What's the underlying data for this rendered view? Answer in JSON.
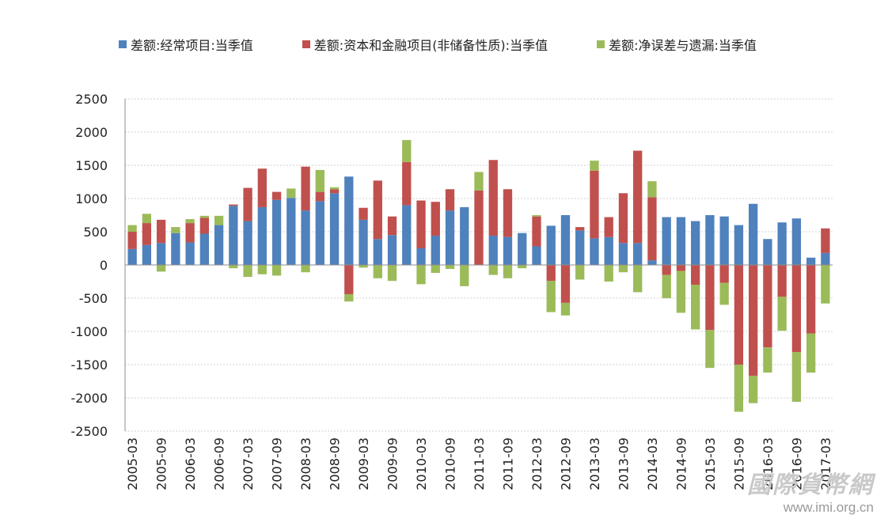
{
  "chart_data": {
    "type": "bar",
    "stacked": true,
    "title": "",
    "xlabel": "",
    "ylabel": "",
    "ylim": [
      -2500,
      2500
    ],
    "yticks": [
      2500,
      2000,
      1500,
      1000,
      500,
      0,
      -500,
      -1000,
      -1500,
      -2000,
      -2500
    ],
    "grid": true,
    "legend_position": "top",
    "categories": [
      "2005-03",
      "2005-06",
      "2005-09",
      "2005-12",
      "2006-03",
      "2006-06",
      "2006-09",
      "2006-12",
      "2007-03",
      "2007-06",
      "2007-09",
      "2007-12",
      "2008-03",
      "2008-06",
      "2008-09",
      "2008-12",
      "2009-03",
      "2009-06",
      "2009-09",
      "2009-12",
      "2010-03",
      "2010-06",
      "2010-09",
      "2010-12",
      "2011-03",
      "2011-06",
      "2011-09",
      "2011-12",
      "2012-03",
      "2012-06",
      "2012-09",
      "2012-12",
      "2013-03",
      "2013-06",
      "2013-09",
      "2013-12",
      "2014-03",
      "2014-06",
      "2014-09",
      "2014-12",
      "2015-03",
      "2015-06",
      "2015-09",
      "2015-12",
      "2016-03",
      "2016-06",
      "2016-09",
      "2016-12",
      "2017-03"
    ],
    "tick_labels": [
      "2005-03",
      "2005-09",
      "2006-03",
      "2006-09",
      "2007-03",
      "2007-09",
      "2008-03",
      "2008-09",
      "2009-03",
      "2009-09",
      "2010-03",
      "2010-09",
      "2011-03",
      "2011-09",
      "2012-03",
      "2012-09",
      "2013-03",
      "2013-09",
      "2014-03",
      "2014-09",
      "2015-03",
      "2015-09",
      "2016-03",
      "2016-09",
      "2017-03"
    ],
    "series": [
      {
        "name": "差额:经常项目:当季值",
        "color": "#4f81bd",
        "values": [
          240,
          300,
          330,
          480,
          340,
          470,
          600,
          890,
          660,
          870,
          980,
          1010,
          820,
          960,
          1080,
          1330,
          680,
          390,
          450,
          900,
          250,
          440,
          820,
          870,
          0,
          440,
          420,
          480,
          280,
          590,
          750,
          520,
          400,
          420,
          330,
          330,
          70,
          720,
          720,
          660,
          750,
          730,
          600,
          920,
          390,
          640,
          700,
          110,
          180
        ]
      },
      {
        "name": "差额:资本和金融项目(非储备性质):当季值",
        "color": "#c0504d",
        "values": [
          260,
          330,
          350,
          0,
          290,
          240,
          0,
          20,
          500,
          580,
          120,
          0,
          660,
          140,
          60,
          -440,
          180,
          880,
          280,
          650,
          720,
          510,
          320,
          0,
          1120,
          1140,
          720,
          0,
          450,
          -240,
          -570,
          50,
          1020,
          300,
          750,
          1390,
          950,
          -150,
          -90,
          -300,
          -980,
          -270,
          -1500,
          -1670,
          -1240,
          -480,
          -1310,
          -1030,
          370
        ]
      },
      {
        "name": "差额:净误差与遗漏:当季值",
        "color": "#9bbb59",
        "values": [
          100,
          140,
          -100,
          90,
          60,
          30,
          140,
          -50,
          -180,
          -140,
          -160,
          140,
          -110,
          330,
          30,
          -110,
          -40,
          -200,
          -240,
          330,
          -290,
          -120,
          -60,
          -320,
          280,
          -150,
          -200,
          -50,
          20,
          -470,
          -190,
          -220,
          150,
          -250,
          -110,
          -410,
          240,
          -350,
          -630,
          -670,
          -570,
          -330,
          -710,
          -410,
          -380,
          -510,
          -750,
          -590,
          -580
        ]
      }
    ]
  },
  "watermark": {
    "logo_text": "國際貨幣網",
    "url": "www.imi.org.cn"
  }
}
